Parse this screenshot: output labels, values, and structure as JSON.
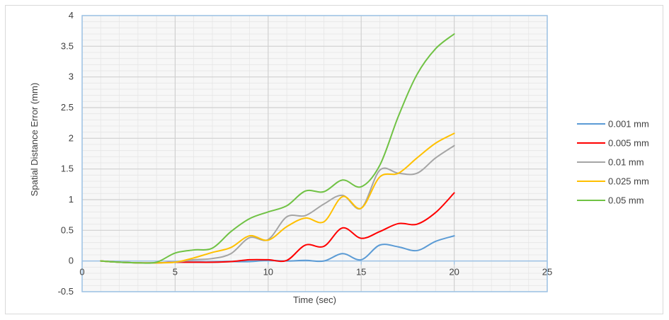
{
  "chart_data": {
    "type": "line",
    "title": "",
    "xlabel": "Time (sec)",
    "ylabel": "Spatial Distance Error (mm)",
    "xlim": [
      0,
      25
    ],
    "ylim": [
      -0.5,
      4
    ],
    "x_ticks": [
      "0",
      "5",
      "10",
      "15",
      "20",
      "25"
    ],
    "y_ticks": [
      "-0.5",
      "0",
      "0.5",
      "1",
      "1.5",
      "2",
      "2.5",
      "3",
      "3.5",
      "4"
    ],
    "grid": true,
    "legend_position": "right",
    "plot_background": "#f7f7f7",
    "plot_border_color": "#9dc3e6",
    "series": [
      {
        "name": "0.001 mm",
        "color": "#5b9bd5",
        "x": [
          1,
          2,
          3,
          4,
          5,
          6,
          7,
          8,
          9,
          10,
          11,
          12,
          13,
          14,
          15,
          16,
          17,
          18,
          19,
          20
        ],
        "y": [
          0,
          -0.02,
          -0.03,
          -0.03,
          -0.02,
          -0.02,
          -0.02,
          -0.01,
          -0.01,
          0.01,
          0.0,
          0.01,
          0.0,
          0.12,
          0.02,
          0.26,
          0.23,
          0.17,
          0.32,
          0.41
        ]
      },
      {
        "name": "0.005 mm",
        "color": "#ff0000",
        "x": [
          1,
          2,
          3,
          4,
          5,
          6,
          7,
          8,
          9,
          10,
          11,
          12,
          13,
          14,
          15,
          16,
          17,
          18,
          19,
          20
        ],
        "y": [
          0,
          -0.02,
          -0.03,
          -0.03,
          -0.02,
          -0.02,
          -0.02,
          -0.01,
          0.02,
          0.02,
          0.01,
          0.26,
          0.24,
          0.54,
          0.37,
          0.48,
          0.61,
          0.6,
          0.79,
          1.11
        ]
      },
      {
        "name": "0.01 mm",
        "color": "#a5a5a5",
        "x": [
          1,
          2,
          3,
          4,
          5,
          6,
          7,
          8,
          9,
          10,
          11,
          12,
          13,
          14,
          15,
          16,
          17,
          18,
          19,
          20
        ],
        "y": [
          0,
          -0.02,
          -0.03,
          -0.03,
          -0.02,
          0.02,
          0.04,
          0.12,
          0.38,
          0.35,
          0.72,
          0.74,
          0.93,
          1.07,
          0.86,
          1.48,
          1.43,
          1.43,
          1.68,
          1.88
        ]
      },
      {
        "name": "0.025 mm",
        "color": "#ffc000",
        "x": [
          1,
          2,
          3,
          4,
          5,
          6,
          7,
          8,
          9,
          10,
          11,
          12,
          13,
          14,
          15,
          16,
          17,
          18,
          19,
          20
        ],
        "y": [
          0,
          -0.02,
          -0.03,
          -0.03,
          -0.02,
          0.05,
          0.14,
          0.22,
          0.41,
          0.34,
          0.56,
          0.7,
          0.64,
          1.05,
          0.86,
          1.37,
          1.43,
          1.68,
          1.92,
          2.08
        ]
      },
      {
        "name": "0.05 mm",
        "color": "#70c244",
        "x": [
          1,
          2,
          3,
          4,
          5,
          6,
          7,
          8,
          9,
          10,
          11,
          12,
          13,
          14,
          15,
          16,
          17,
          18,
          19,
          20
        ],
        "y": [
          0,
          -0.02,
          -0.03,
          -0.02,
          0.13,
          0.18,
          0.21,
          0.48,
          0.69,
          0.8,
          0.9,
          1.14,
          1.13,
          1.32,
          1.21,
          1.56,
          2.36,
          3.04,
          3.46,
          3.7
        ]
      }
    ]
  }
}
